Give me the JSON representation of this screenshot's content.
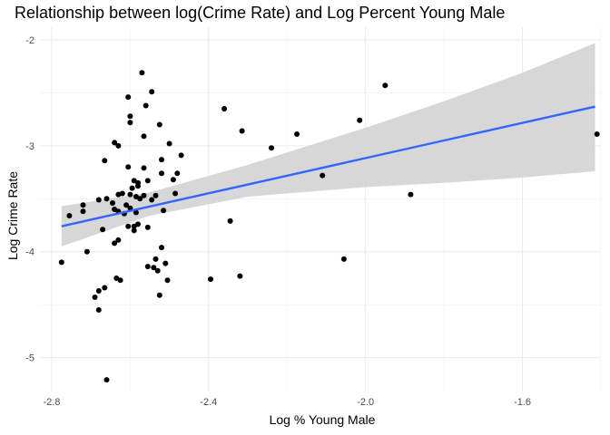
{
  "chart_data": {
    "type": "scatter",
    "title": "Relationship between log(Crime Rate) and Log Percent Young Male",
    "xlabel": "Log % Young Male",
    "ylabel": "Log Crime Rate",
    "xlim": [
      -2.83,
      -1.4
    ],
    "ylim": [
      -5.32,
      -1.88
    ],
    "xticks": [
      -2.8,
      -2.4,
      -2.0,
      -1.6
    ],
    "xtick_labels": [
      "-2.8",
      "-2.4",
      "-2.0",
      "-1.6"
    ],
    "yticks": [
      -2,
      -3,
      -4,
      -5
    ],
    "ytick_labels": [
      "-2",
      "-3",
      "-4",
      "-5"
    ],
    "grid": true,
    "colors": {
      "points": "#000000",
      "fit_line": "#3366FF",
      "ribbon": "#d3d3d3"
    },
    "fit": {
      "x": [
        -2.775,
        -1.415
      ],
      "y": [
        -3.76,
        -2.63
      ],
      "ci_x": [
        -2.775,
        -2.55,
        -2.3,
        -2.0,
        -1.8,
        -1.6,
        -1.415
      ],
      "ci_upper": [
        -3.57,
        -3.44,
        -3.18,
        -2.83,
        -2.58,
        -2.31,
        -2.03
      ],
      "ci_lower": [
        -3.95,
        -3.66,
        -3.48,
        -3.39,
        -3.35,
        -3.3,
        -3.24
      ]
    },
    "points": [
      {
        "x": -2.775,
        "y": -4.1
      },
      {
        "x": -2.755,
        "y": -3.66
      },
      {
        "x": -2.72,
        "y": -3.56
      },
      {
        "x": -2.72,
        "y": -3.62
      },
      {
        "x": -2.71,
        "y": -4.0
      },
      {
        "x": -2.69,
        "y": -4.43
      },
      {
        "x": -2.68,
        "y": -4.55
      },
      {
        "x": -2.68,
        "y": -4.37
      },
      {
        "x": -2.68,
        "y": -3.51
      },
      {
        "x": -2.67,
        "y": -3.79
      },
      {
        "x": -2.665,
        "y": -4.34
      },
      {
        "x": -2.665,
        "y": -3.14
      },
      {
        "x": -2.66,
        "y": -3.5
      },
      {
        "x": -2.66,
        "y": -5.21
      },
      {
        "x": -2.645,
        "y": -3.54
      },
      {
        "x": -2.64,
        "y": -2.97
      },
      {
        "x": -2.64,
        "y": -3.6
      },
      {
        "x": -2.64,
        "y": -3.92
      },
      {
        "x": -2.635,
        "y": -4.25
      },
      {
        "x": -2.63,
        "y": -3.0
      },
      {
        "x": -2.63,
        "y": -3.46
      },
      {
        "x": -2.63,
        "y": -3.62
      },
      {
        "x": -2.63,
        "y": -3.89
      },
      {
        "x": -2.625,
        "y": -4.27
      },
      {
        "x": -2.62,
        "y": -3.45
      },
      {
        "x": -2.615,
        "y": -3.64
      },
      {
        "x": -2.61,
        "y": -3.56
      },
      {
        "x": -2.605,
        "y": -2.54
      },
      {
        "x": -2.605,
        "y": -3.2
      },
      {
        "x": -2.605,
        "y": -3.76
      },
      {
        "x": -2.6,
        "y": -2.72
      },
      {
        "x": -2.6,
        "y": -2.78
      },
      {
        "x": -2.6,
        "y": -3.46
      },
      {
        "x": -2.6,
        "y": -3.59
      },
      {
        "x": -2.595,
        "y": -3.4
      },
      {
        "x": -2.59,
        "y": -3.33
      },
      {
        "x": -2.59,
        "y": -3.76
      },
      {
        "x": -2.59,
        "y": -3.8
      },
      {
        "x": -2.585,
        "y": -3.48
      },
      {
        "x": -2.585,
        "y": -3.63
      },
      {
        "x": -2.58,
        "y": -3.35
      },
      {
        "x": -2.58,
        "y": -3.38
      },
      {
        "x": -2.58,
        "y": -3.74
      },
      {
        "x": -2.575,
        "y": -3.5
      },
      {
        "x": -2.57,
        "y": -2.31
      },
      {
        "x": -2.565,
        "y": -2.91
      },
      {
        "x": -2.565,
        "y": -3.21
      },
      {
        "x": -2.565,
        "y": -3.47
      },
      {
        "x": -2.56,
        "y": -2.62
      },
      {
        "x": -2.555,
        "y": -3.33
      },
      {
        "x": -2.555,
        "y": -3.77
      },
      {
        "x": -2.555,
        "y": -4.14
      },
      {
        "x": -2.545,
        "y": -2.49
      },
      {
        "x": -2.545,
        "y": -3.51
      },
      {
        "x": -2.54,
        "y": -4.15
      },
      {
        "x": -2.535,
        "y": -3.47
      },
      {
        "x": -2.535,
        "y": -4.07
      },
      {
        "x": -2.53,
        "y": -4.18
      },
      {
        "x": -2.525,
        "y": -2.8
      },
      {
        "x": -2.525,
        "y": -4.41
      },
      {
        "x": -2.52,
        "y": -3.13
      },
      {
        "x": -2.52,
        "y": -3.26
      },
      {
        "x": -2.52,
        "y": -3.96
      },
      {
        "x": -2.515,
        "y": -3.61
      },
      {
        "x": -2.51,
        "y": -4.11
      },
      {
        "x": -2.505,
        "y": -4.27
      },
      {
        "x": -2.5,
        "y": -2.98
      },
      {
        "x": -2.49,
        "y": -3.32
      },
      {
        "x": -2.485,
        "y": -3.45
      },
      {
        "x": -2.48,
        "y": -3.26
      },
      {
        "x": -2.47,
        "y": -3.09
      },
      {
        "x": -2.395,
        "y": -4.26
      },
      {
        "x": -2.36,
        "y": -2.65
      },
      {
        "x": -2.345,
        "y": -3.71
      },
      {
        "x": -2.32,
        "y": -4.23
      },
      {
        "x": -2.315,
        "y": -2.86
      },
      {
        "x": -2.24,
        "y": -3.02
      },
      {
        "x": -2.175,
        "y": -2.89
      },
      {
        "x": -2.11,
        "y": -3.28
      },
      {
        "x": -2.055,
        "y": -4.07
      },
      {
        "x": -2.015,
        "y": -2.76
      },
      {
        "x": -1.95,
        "y": -2.43
      },
      {
        "x": -1.885,
        "y": -3.46
      },
      {
        "x": -1.41,
        "y": -2.89
      }
    ]
  }
}
